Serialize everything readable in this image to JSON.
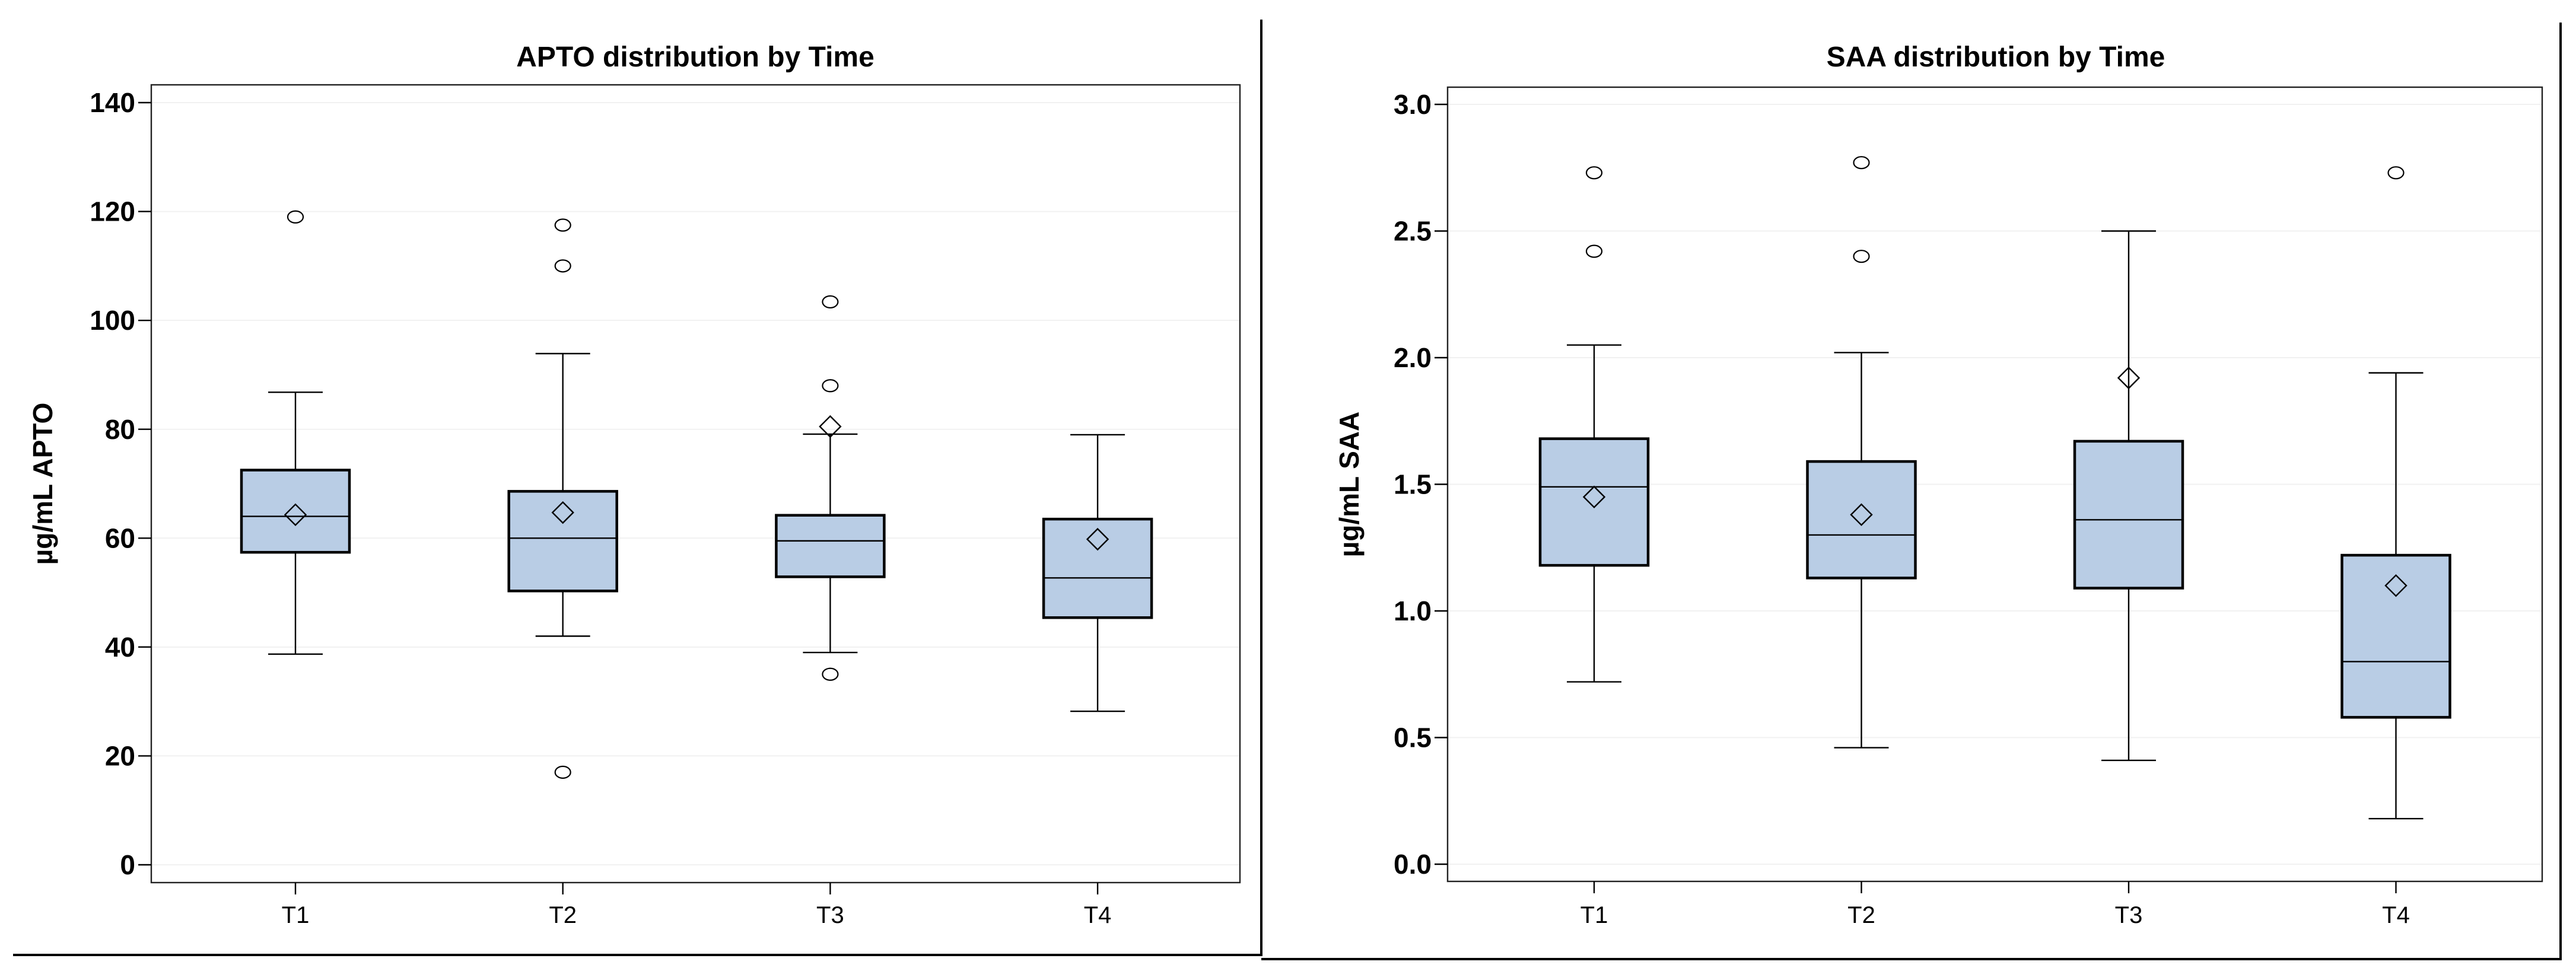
{
  "styles": {
    "background": "#ffffff",
    "box_fill": "#b9cde5",
    "box_stroke": "#000000",
    "whisker_color": "#000000",
    "median_color": "#000000",
    "mean_marker": "diamond-outline",
    "outlier_marker": "circle-outline",
    "grid_color": "#f1f1f1",
    "frame_color": "#222222",
    "tick_color": "#000000",
    "text_color": "#000000",
    "figure_border_color": "#000000"
  },
  "chart_data": [
    {
      "type": "box",
      "title": "APTO distribution by Time",
      "ylabel": "µg/mL APTO",
      "xlabel": "",
      "categories": [
        "T1",
        "T2",
        "T3",
        "T4"
      ],
      "ylim": [
        0,
        140
      ],
      "yticks": [
        0,
        20,
        40,
        60,
        80,
        100,
        120,
        140
      ],
      "ytick_labels": [
        "0",
        "20",
        "40",
        "60",
        "80",
        "100",
        "120",
        "140"
      ],
      "grid": true,
      "legend": "none",
      "boxes": [
        {
          "category": "T1",
          "whisker_low": 38.7,
          "q1": 57.4,
          "median": 64.0,
          "q3": 72.5,
          "whisker_high": 86.8,
          "mean": 64.3,
          "outliers": [
            119
          ]
        },
        {
          "category": "T2",
          "whisker_low": 42.0,
          "q1": 50.3,
          "median": 60.0,
          "q3": 68.6,
          "whisker_high": 93.9,
          "mean": 64.7,
          "outliers": [
            117.5,
            110,
            17
          ]
        },
        {
          "category": "T3",
          "whisker_low": 39.0,
          "q1": 52.9,
          "median": 59.5,
          "q3": 64.2,
          "whisker_high": 79.1,
          "mean": 80.5,
          "outliers": [
            103.4,
            88,
            35
          ]
        },
        {
          "category": "T4",
          "whisker_low": 28.2,
          "q1": 45.4,
          "median": 52.7,
          "q3": 63.5,
          "whisker_high": 79.0,
          "mean": 59.8,
          "outliers": []
        }
      ]
    },
    {
      "type": "box",
      "title": "SAA distribution by Time",
      "ylabel": "µg/mL SAA",
      "xlabel": "",
      "categories": [
        "T1",
        "T2",
        "T3",
        "T4"
      ],
      "ylim": [
        0.0,
        3.0
      ],
      "yticks": [
        0.0,
        0.5,
        1.0,
        1.5,
        2.0,
        2.5,
        3.0
      ],
      "ytick_labels": [
        "0.0",
        "0.5",
        "1.0",
        "1.5",
        "2.0",
        "2.5",
        "3.0"
      ],
      "grid": true,
      "legend": "none",
      "boxes": [
        {
          "category": "T1",
          "whisker_low": 0.72,
          "q1": 1.18,
          "median": 1.49,
          "q3": 1.68,
          "whisker_high": 2.05,
          "mean": 1.45,
          "outliers": [
            2.73,
            2.42
          ]
        },
        {
          "category": "T2",
          "whisker_low": 0.46,
          "q1": 1.13,
          "median": 1.3,
          "q3": 1.59,
          "whisker_high": 2.02,
          "mean": 1.38,
          "outliers": [
            2.77,
            2.4
          ]
        },
        {
          "category": "T3",
          "whisker_low": 0.41,
          "q1": 1.09,
          "median": 1.36,
          "q3": 1.67,
          "whisker_high": 2.5,
          "mean": 1.92,
          "outliers": []
        },
        {
          "category": "T4",
          "whisker_low": 0.18,
          "q1": 0.58,
          "median": 0.8,
          "q3": 1.22,
          "whisker_high": 1.94,
          "mean": 1.1,
          "outliers": [
            2.73
          ]
        }
      ]
    }
  ]
}
